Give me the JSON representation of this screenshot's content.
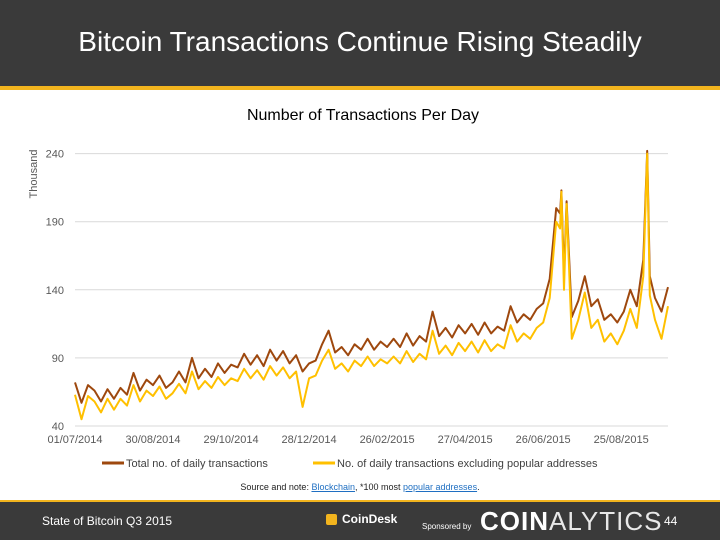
{
  "slide": {
    "title": "Bitcoin Transactions Continue Rising Steadily",
    "footer_left": "State of Bitcoin Q3 2015",
    "coindesk_label": "CoinDesk",
    "sponsored_label": "Sponsored by",
    "brand_part1": "COIN",
    "brand_part2": "ALYTICS",
    "page_number": "44"
  },
  "source": {
    "prefix": "Source and note: ",
    "link1": "Blockchain",
    "middle": ", *100 most ",
    "link2": "popular addresses",
    "suffix": "."
  },
  "colors": {
    "header_bg": "#3a3a3a",
    "accent": "#f2b41e",
    "series_total": "#9e480e",
    "series_excl": "#ffc000"
  },
  "chart_data": {
    "type": "line",
    "title": "Number of Transactions Per Day",
    "ylabel": "Thousand",
    "ylim": [
      40,
      250
    ],
    "yticks": [
      40,
      90,
      140,
      190,
      240
    ],
    "x_start": "2014-07-01",
    "x_end": "2015-09-30",
    "xtick_labels": [
      "01/07/2014",
      "30/08/2014",
      "29/10/2014",
      "28/12/2014",
      "26/02/2015",
      "27/04/2015",
      "26/06/2015",
      "25/08/2015"
    ],
    "grid": true,
    "legend_position": "bottom",
    "series": [
      {
        "name": "Total no. of daily transactions",
        "color": "#9e480e",
        "points": [
          [
            "2014-07-01",
            72
          ],
          [
            "2014-07-06",
            57
          ],
          [
            "2014-07-11",
            70
          ],
          [
            "2014-07-16",
            66
          ],
          [
            "2014-07-21",
            58
          ],
          [
            "2014-07-26",
            67
          ],
          [
            "2014-07-31",
            60
          ],
          [
            "2014-08-05",
            68
          ],
          [
            "2014-08-10",
            63
          ],
          [
            "2014-08-15",
            79
          ],
          [
            "2014-08-20",
            66
          ],
          [
            "2014-08-25",
            74
          ],
          [
            "2014-08-30",
            70
          ],
          [
            "2014-09-04",
            77
          ],
          [
            "2014-09-09",
            68
          ],
          [
            "2014-09-14",
            72
          ],
          [
            "2014-09-19",
            80
          ],
          [
            "2014-09-24",
            72
          ],
          [
            "2014-09-29",
            90
          ],
          [
            "2014-10-04",
            75
          ],
          [
            "2014-10-09",
            82
          ],
          [
            "2014-10-14",
            76
          ],
          [
            "2014-10-19",
            86
          ],
          [
            "2014-10-24",
            79
          ],
          [
            "2014-10-29",
            85
          ],
          [
            "2014-11-03",
            83
          ],
          [
            "2014-11-08",
            93
          ],
          [
            "2014-11-13",
            85
          ],
          [
            "2014-11-18",
            92
          ],
          [
            "2014-11-23",
            84
          ],
          [
            "2014-11-28",
            96
          ],
          [
            "2014-12-03",
            88
          ],
          [
            "2014-12-08",
            95
          ],
          [
            "2014-12-13",
            86
          ],
          [
            "2014-12-18",
            92
          ],
          [
            "2014-12-23",
            80
          ],
          [
            "2014-12-28",
            86
          ],
          [
            "2015-01-02",
            88
          ],
          [
            "2015-01-07",
            100
          ],
          [
            "2015-01-12",
            110
          ],
          [
            "2015-01-17",
            94
          ],
          [
            "2015-01-22",
            98
          ],
          [
            "2015-01-27",
            92
          ],
          [
            "2015-02-01",
            100
          ],
          [
            "2015-02-06",
            96
          ],
          [
            "2015-02-11",
            104
          ],
          [
            "2015-02-16",
            96
          ],
          [
            "2015-02-21",
            102
          ],
          [
            "2015-02-26",
            98
          ],
          [
            "2015-03-03",
            104
          ],
          [
            "2015-03-08",
            98
          ],
          [
            "2015-03-13",
            108
          ],
          [
            "2015-03-18",
            99
          ],
          [
            "2015-03-23",
            106
          ],
          [
            "2015-03-28",
            102
          ],
          [
            "2015-04-02",
            124
          ],
          [
            "2015-04-07",
            106
          ],
          [
            "2015-04-12",
            112
          ],
          [
            "2015-04-17",
            105
          ],
          [
            "2015-04-22",
            114
          ],
          [
            "2015-04-27",
            108
          ],
          [
            "2015-05-02",
            115
          ],
          [
            "2015-05-07",
            107
          ],
          [
            "2015-05-12",
            116
          ],
          [
            "2015-05-17",
            108
          ],
          [
            "2015-05-22",
            113
          ],
          [
            "2015-05-27",
            110
          ],
          [
            "2015-06-01",
            128
          ],
          [
            "2015-06-06",
            116
          ],
          [
            "2015-06-11",
            122
          ],
          [
            "2015-06-16",
            118
          ],
          [
            "2015-06-21",
            126
          ],
          [
            "2015-06-26",
            130
          ],
          [
            "2015-07-01",
            148
          ],
          [
            "2015-07-06",
            200
          ],
          [
            "2015-07-09",
            196
          ],
          [
            "2015-07-10",
            213
          ],
          [
            "2015-07-12",
            150
          ],
          [
            "2015-07-14",
            205
          ],
          [
            "2015-07-18",
            120
          ],
          [
            "2015-07-23",
            132
          ],
          [
            "2015-07-28",
            150
          ],
          [
            "2015-08-02",
            128
          ],
          [
            "2015-08-07",
            133
          ],
          [
            "2015-08-12",
            118
          ],
          [
            "2015-08-17",
            122
          ],
          [
            "2015-08-22",
            116
          ],
          [
            "2015-08-27",
            124
          ],
          [
            "2015-09-01",
            140
          ],
          [
            "2015-09-06",
            128
          ],
          [
            "2015-09-11",
            162
          ],
          [
            "2015-09-14",
            242
          ],
          [
            "2015-09-16",
            150
          ],
          [
            "2015-09-20",
            134
          ],
          [
            "2015-09-25",
            124
          ],
          [
            "2015-09-30",
            142
          ]
        ]
      },
      {
        "name": "No. of daily transactions excluding popular addresses",
        "color": "#ffc000",
        "points": [
          [
            "2014-07-01",
            63
          ],
          [
            "2014-07-06",
            45
          ],
          [
            "2014-07-11",
            62
          ],
          [
            "2014-07-16",
            58
          ],
          [
            "2014-07-21",
            50
          ],
          [
            "2014-07-26",
            60
          ],
          [
            "2014-07-31",
            52
          ],
          [
            "2014-08-05",
            60
          ],
          [
            "2014-08-10",
            55
          ],
          [
            "2014-08-15",
            70
          ],
          [
            "2014-08-20",
            58
          ],
          [
            "2014-08-25",
            66
          ],
          [
            "2014-08-30",
            62
          ],
          [
            "2014-09-04",
            69
          ],
          [
            "2014-09-09",
            60
          ],
          [
            "2014-09-14",
            64
          ],
          [
            "2014-09-19",
            71
          ],
          [
            "2014-09-24",
            64
          ],
          [
            "2014-09-29",
            80
          ],
          [
            "2014-10-04",
            67
          ],
          [
            "2014-10-09",
            73
          ],
          [
            "2014-10-14",
            68
          ],
          [
            "2014-10-19",
            76
          ],
          [
            "2014-10-24",
            70
          ],
          [
            "2014-10-29",
            75
          ],
          [
            "2014-11-03",
            73
          ],
          [
            "2014-11-08",
            82
          ],
          [
            "2014-11-13",
            75
          ],
          [
            "2014-11-18",
            81
          ],
          [
            "2014-11-23",
            74
          ],
          [
            "2014-11-28",
            84
          ],
          [
            "2014-12-03",
            77
          ],
          [
            "2014-12-08",
            83
          ],
          [
            "2014-12-13",
            75
          ],
          [
            "2014-12-18",
            80
          ],
          [
            "2014-12-23",
            54
          ],
          [
            "2014-12-28",
            75
          ],
          [
            "2015-01-02",
            77
          ],
          [
            "2015-01-07",
            88
          ],
          [
            "2015-01-12",
            96
          ],
          [
            "2015-01-17",
            82
          ],
          [
            "2015-01-22",
            86
          ],
          [
            "2015-01-27",
            80
          ],
          [
            "2015-02-01",
            88
          ],
          [
            "2015-02-06",
            84
          ],
          [
            "2015-02-11",
            91
          ],
          [
            "2015-02-16",
            84
          ],
          [
            "2015-02-21",
            89
          ],
          [
            "2015-02-26",
            86
          ],
          [
            "2015-03-03",
            91
          ],
          [
            "2015-03-08",
            86
          ],
          [
            "2015-03-13",
            95
          ],
          [
            "2015-03-18",
            87
          ],
          [
            "2015-03-23",
            93
          ],
          [
            "2015-03-28",
            89
          ],
          [
            "2015-04-02",
            110
          ],
          [
            "2015-04-07",
            93
          ],
          [
            "2015-04-12",
            99
          ],
          [
            "2015-04-17",
            92
          ],
          [
            "2015-04-22",
            101
          ],
          [
            "2015-04-27",
            95
          ],
          [
            "2015-05-02",
            102
          ],
          [
            "2015-05-07",
            94
          ],
          [
            "2015-05-12",
            103
          ],
          [
            "2015-05-17",
            95
          ],
          [
            "2015-05-22",
            100
          ],
          [
            "2015-05-27",
            97
          ],
          [
            "2015-06-01",
            114
          ],
          [
            "2015-06-06",
            102
          ],
          [
            "2015-06-11",
            108
          ],
          [
            "2015-06-16",
            104
          ],
          [
            "2015-06-21",
            112
          ],
          [
            "2015-06-26",
            116
          ],
          [
            "2015-07-01",
            134
          ],
          [
            "2015-07-06",
            190
          ],
          [
            "2015-07-09",
            185
          ],
          [
            "2015-07-10",
            212
          ],
          [
            "2015-07-12",
            140
          ],
          [
            "2015-07-14",
            203
          ],
          [
            "2015-07-18",
            104
          ],
          [
            "2015-07-23",
            118
          ],
          [
            "2015-07-28",
            138
          ],
          [
            "2015-08-02",
            112
          ],
          [
            "2015-08-07",
            118
          ],
          [
            "2015-08-12",
            102
          ],
          [
            "2015-08-17",
            108
          ],
          [
            "2015-08-22",
            100
          ],
          [
            "2015-08-27",
            110
          ],
          [
            "2015-09-01",
            126
          ],
          [
            "2015-09-06",
            112
          ],
          [
            "2015-09-11",
            150
          ],
          [
            "2015-09-14",
            240
          ],
          [
            "2015-09-16",
            136
          ],
          [
            "2015-09-20",
            118
          ],
          [
            "2015-09-25",
            104
          ],
          [
            "2015-09-30",
            128
          ]
        ]
      }
    ]
  }
}
